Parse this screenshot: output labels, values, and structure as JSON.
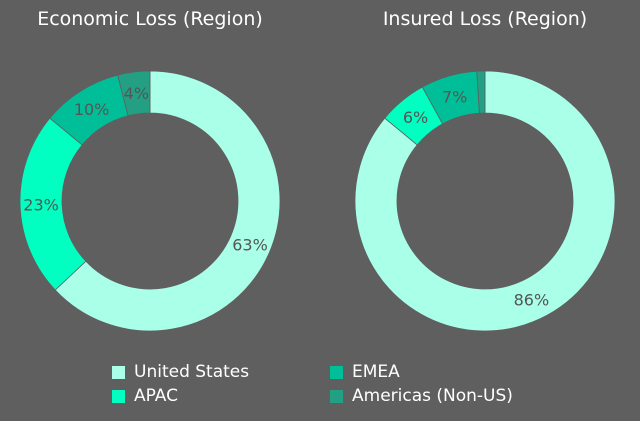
{
  "chart_data": [
    {
      "type": "pie",
      "title": "Economic Loss (Region)",
      "categories": [
        "United States",
        "APAC",
        "EMEA",
        "Americas (Non-US)"
      ],
      "values": [
        63,
        23,
        10,
        4
      ],
      "labels": [
        "63%",
        "23%",
        "10%",
        "4%"
      ]
    },
    {
      "type": "pie",
      "title": "Insured Loss (Region)",
      "categories": [
        "United States",
        "APAC",
        "EMEA",
        "Americas (Non-US)"
      ],
      "values": [
        86,
        6,
        7,
        1
      ],
      "labels": [
        "86%",
        "6%",
        "7%",
        ""
      ]
    }
  ],
  "legend": {
    "placement": "bottom",
    "items": [
      {
        "label": "United States",
        "color": "#aaffe9"
      },
      {
        "label": "EMEA",
        "color": "#00bf98"
      },
      {
        "label": "APAC",
        "color": "#00ffc0"
      },
      {
        "label": "Americas (Non-US)",
        "color": "#23a083"
      }
    ]
  },
  "colors": {
    "United States": "#aaffe9",
    "APAC": "#00ffc0",
    "EMEA": "#00bf98",
    "Americas (Non-US)": "#23a083",
    "background": "#5f5f5f",
    "label": "#555555"
  }
}
